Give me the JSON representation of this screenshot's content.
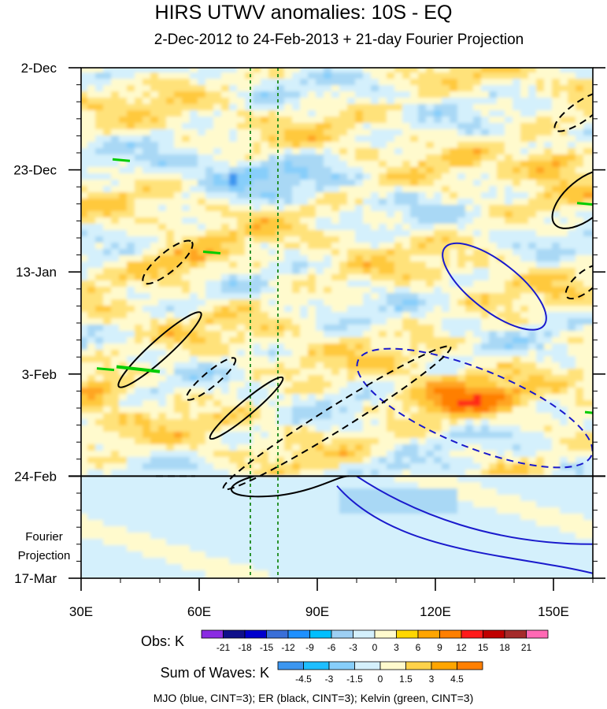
{
  "chart_data": {
    "type": "heatmap",
    "title": "HIRS UTWV anomalies: 10S - EQ",
    "subtitle": "2-Dec-2012 to 24-Feb-2013 + 21-day Fourier Projection",
    "x_ticks": [
      {
        "value": 30,
        "label": "30E"
      },
      {
        "value": 60,
        "label": "60E"
      },
      {
        "value": 90,
        "label": "90E"
      },
      {
        "value": 120,
        "label": "120E"
      },
      {
        "value": 150,
        "label": "150E"
      }
    ],
    "xlim": [
      30,
      160
    ],
    "y_ticks": [
      {
        "value": 0,
        "label": "2-Dec"
      },
      {
        "value": 21,
        "label": "23-Dec"
      },
      {
        "value": 42,
        "label": "13-Jan"
      },
      {
        "value": 63,
        "label": "3-Feb"
      },
      {
        "value": 84,
        "label": "24-Feb"
      },
      {
        "value": 105,
        "label": "17-Mar"
      }
    ],
    "ylim_days": [
      0,
      105
    ],
    "observation_end_day": 84,
    "projection_label": [
      "Fourier",
      "Projection"
    ],
    "reference_longitudes": [
      73,
      80
    ],
    "obs_colorbar": {
      "title": "Obs: K",
      "levels": [
        "-21",
        "-18",
        "-15",
        "-12",
        "-9",
        "-6",
        "-3",
        "0",
        "3",
        "6",
        "9",
        "12",
        "15",
        "18",
        "21"
      ],
      "colors": [
        "#8a2be2",
        "#10108a",
        "#0000cd",
        "#3a6fd8",
        "#1e90ff",
        "#00bfff",
        "#9dcff3",
        "#d4f0fc",
        "#fffacd",
        "#ffd700",
        "#ffa500",
        "#ff7f00",
        "#ff1a1a",
        "#c00000",
        "#a52a2a",
        "#ff69b4"
      ]
    },
    "waves_colorbar": {
      "title": "Sum of Waves: K",
      "levels": [
        "-4.5",
        "-3",
        "-1.5",
        "0",
        "1.5",
        "3",
        "4.5"
      ],
      "colors": [
        "#3c96f0",
        "#1ebeff",
        "#87cefa",
        "#d4f0fc",
        "#fffacd",
        "#ffd24a",
        "#ffa500",
        "#ff7f00"
      ]
    },
    "contours": [
      {
        "wave": "MJO",
        "color": "blue",
        "style": "solid",
        "center": [
          135,
          45
        ],
        "radii": [
          16,
          5
        ],
        "angle_deg": 38
      },
      {
        "wave": "MJO",
        "color": "blue",
        "style": "dashed",
        "center": [
          130,
          70
        ],
        "radii": [
          32,
          8
        ],
        "angle_deg": 22
      },
      {
        "wave": "MJO",
        "color": "blue",
        "style": "solid",
        "center": [
          100,
          84
        ],
        "radii": [
          0,
          0
        ],
        "angle_deg": 0
      },
      {
        "wave": "ER",
        "color": "black",
        "style": "dashed",
        "center": [
          52,
          40
        ],
        "radii": [
          8,
          2
        ],
        "angle_deg": -40
      },
      {
        "wave": "ER",
        "color": "black",
        "style": "solid",
        "center": [
          50,
          58
        ],
        "radii": [
          14,
          2
        ],
        "angle_deg": -42
      },
      {
        "wave": "ER",
        "color": "black",
        "style": "dashed",
        "center": [
          63,
          64
        ],
        "radii": [
          8,
          1.5
        ],
        "angle_deg": -40
      },
      {
        "wave": "ER",
        "color": "black",
        "style": "solid",
        "center": [
          72,
          70
        ],
        "radii": [
          12,
          1.5
        ],
        "angle_deg": -40
      },
      {
        "wave": "ER",
        "color": "black",
        "style": "dashed",
        "center": [
          95,
          72
        ],
        "radii": [
          34,
          2.5
        ],
        "angle_deg": -32
      },
      {
        "wave": "ER",
        "color": "black",
        "style": "dashed",
        "center": [
          158,
          44
        ],
        "radii": [
          6,
          2
        ],
        "angle_deg": -40
      },
      {
        "wave": "ER",
        "color": "black",
        "style": "dashed",
        "center": [
          157,
          9
        ],
        "radii": [
          8,
          2
        ],
        "angle_deg": -35
      },
      {
        "wave": "ER",
        "color": "black",
        "style": "solid",
        "center": [
          158,
          27
        ],
        "radii": [
          10,
          4
        ],
        "angle_deg": -40
      }
    ],
    "legend_note": "MJO (blue, CINT=3); ER (black, CINT=3); Kelvin (green, CINT=3)"
  }
}
